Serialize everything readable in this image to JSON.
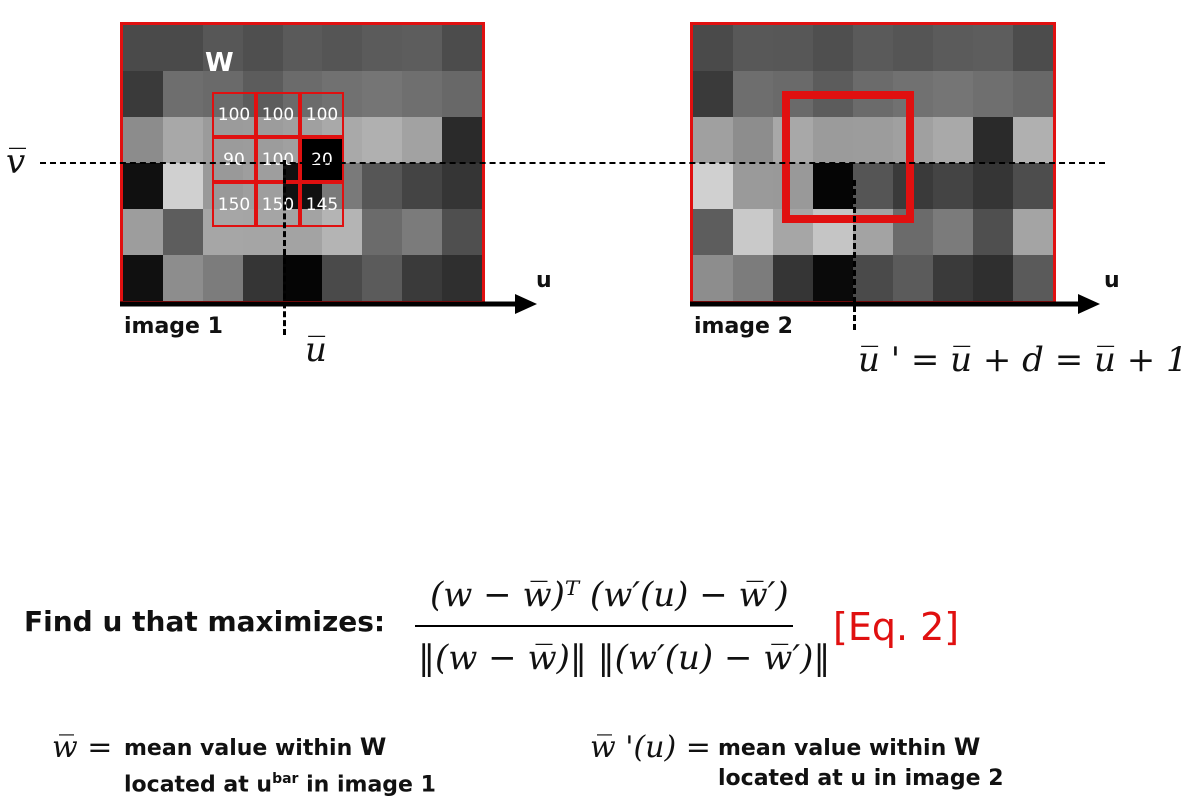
{
  "image1": {
    "label": "image 1",
    "window_label": "W",
    "window_values": [
      "100",
      "100",
      "100",
      "90",
      "100",
      "20",
      "150",
      "150",
      "145"
    ],
    "pixels": [
      [
        "#4a4a4a",
        "#4a4a4a",
        "#575757",
        "#4f4f4f",
        "#5a5a5a",
        "#555555",
        "#5b5b5b",
        "#5d5d5d",
        "#4c4c4c"
      ],
      [
        "#3a3a3a",
        "#6e6e6e",
        "#6a6a6a",
        "#5c5c5c",
        "#6b6b6b",
        "#717171",
        "#757575",
        "#6f6f6f",
        "#686868"
      ],
      [
        "#8c8c8c",
        "#a8a8a8",
        "#9b9b9b",
        "#9c9c9c",
        "#a0a0a0",
        "#a9a9a9",
        "#b0b0b0",
        "#a2a2a2",
        "#2a2a2a"
      ],
      [
        "#101010",
        "#d0d0d0",
        "#999999",
        "#9e9e9e",
        "#111111",
        "#7a7a7a",
        "#565656",
        "#444444",
        "#353535"
      ],
      [
        "#9d9d9d",
        "#5d5d5d",
        "#a6a6a6",
        "#a5a5a5",
        "#a3a3a3",
        "#b4b4b4",
        "#6b6b6b",
        "#7b7b7b",
        "#4f4f4f"
      ],
      [
        "#101010",
        "#8d8d8d",
        "#7c7c7c",
        "#353535",
        "#050505",
        "#4a4a4a",
        "#5b5b5b",
        "#3a3a3a",
        "#2f2f2f"
      ]
    ]
  },
  "image2": {
    "label": "image 2",
    "pixels": [
      [
        "#4a4a4a",
        "#585858",
        "#575757",
        "#4f4f4f",
        "#5a5a5a",
        "#555555",
        "#5b5b5b",
        "#5d5d5d",
        "#4c4c4c"
      ],
      [
        "#3a3a3a",
        "#6e6e6e",
        "#6a6a6a",
        "#5c5c5c",
        "#6b6b6b",
        "#717171",
        "#757575",
        "#6f6f6f",
        "#686868"
      ],
      [
        "#a0a0a0",
        "#8d8d8d",
        "#a8a8a8",
        "#9b9b9b",
        "#9c9c9c",
        "#a0a0a0",
        "#a9a9a9",
        "#2a2a2a",
        "#b0b0b0"
      ],
      [
        "#d0d0d0",
        "#9a9a9a",
        "#999999",
        "#050505",
        "#555555",
        "#3a3a3a",
        "#444444",
        "#353535",
        "#4d4d4d"
      ],
      [
        "#5d5d5d",
        "#c9c9c9",
        "#a6a6a6",
        "#c5c5c5",
        "#a3a3a3",
        "#6b6b6b",
        "#7b7b7b",
        "#4f4f4f",
        "#a4a4a4"
      ],
      [
        "#8d8d8d",
        "#7c7c7c",
        "#353535",
        "#0a0a0a",
        "#4a4a4a",
        "#5b5b5b",
        "#3a3a3a",
        "#2f2f2f",
        "#5a5a5a"
      ]
    ]
  },
  "axis_label_u1": "u",
  "axis_label_u2": "u",
  "vbar_label": "v̅",
  "ubar_label": "u̅",
  "uprime_eq": "u̅ ' = u̅ + d = u̅ + 1",
  "find_text": "Find u that maximizes:",
  "numerator": "(w − w̅)ᵀ (w′(u) − w̅′)",
  "denominator": "‖(w − w̅)‖ ‖(w′(u) − w̅′)‖",
  "eq_tag": "[Eq. 2]",
  "wbar_symbol": "w̅ =",
  "wbar_desc_1a": "mean value within ",
  "wbar_desc_1b": "W",
  "wbar_desc_2a": "located at u",
  "wbar_desc_2sup": "bar",
  "wbar_desc_2b": " in image 1",
  "wprime_symbol": "w̅ '(u) =",
  "wprime_desc_1a": "mean value within ",
  "wprime_desc_1b": "W",
  "wprime_desc_2": "located at u in image 2",
  "colors": {
    "accent_red": "#e01010"
  }
}
